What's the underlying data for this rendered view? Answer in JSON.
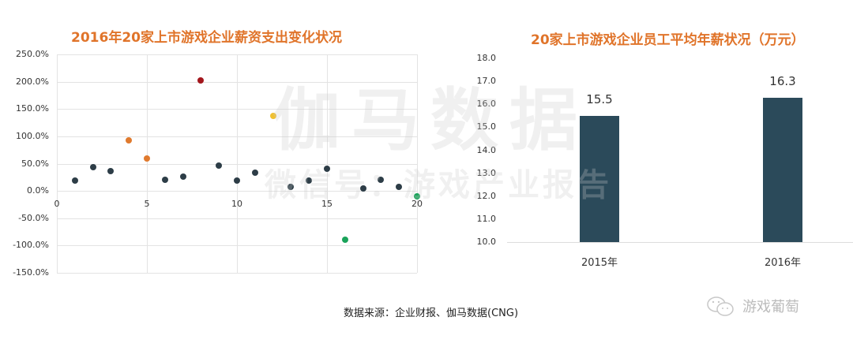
{
  "left_chart": {
    "title": "2016年20家上市游戏企业薪资支出变化状况",
    "y_ticks": [
      "250.0%",
      "200.0%",
      "150.0%",
      "100.0%",
      "50.0%",
      "0.0%",
      "-50.0%",
      "-100.0%",
      "-150.0%"
    ],
    "x_ticks": [
      "0",
      "5",
      "10",
      "15",
      "20"
    ]
  },
  "right_chart": {
    "title": "20家上市游戏企业员工平均年薪状况（万元）",
    "y_ticks": [
      "18.0",
      "17.0",
      "16.0",
      "15.0",
      "14.0",
      "13.0",
      "12.0",
      "11.0",
      "10.0"
    ],
    "categories": [
      "2015年",
      "2016年"
    ],
    "bar_labels": [
      "15.5",
      "16.3"
    ],
    "bar_color": "#2b4a5a"
  },
  "watermark": {
    "main": "伽马数据",
    "sub": "微信号：游戏产业报告"
  },
  "footer": {
    "source": "数据来源：企业财报、伽马数据(CNG)",
    "brand": "游戏葡萄"
  },
  "chart_data": [
    {
      "type": "scatter",
      "title": "2016年20家上市游戏企业薪资支出变化状况",
      "xlabel": "",
      "ylabel": "",
      "xlim": [
        0,
        20
      ],
      "ylim": [
        -150,
        250
      ],
      "y_unit": "%",
      "grid": true,
      "x": [
        1,
        2,
        3,
        4,
        5,
        6,
        7,
        8,
        9,
        10,
        11,
        12,
        13,
        14,
        15,
        16,
        17,
        18,
        19,
        20
      ],
      "y": [
        19,
        44,
        36,
        93,
        60,
        20,
        26,
        203,
        47,
        19,
        34,
        138,
        7,
        19,
        40,
        -89,
        4,
        20,
        8,
        -10
      ],
      "colors": [
        "#2d3d47",
        "#2d3d47",
        "#2d3d47",
        "#e07a2e",
        "#e07a2e",
        "#2d3d47",
        "#2d3d47",
        "#a3161c",
        "#2d3d47",
        "#2d3d47",
        "#2d3d47",
        "#f0c030",
        "#2d3d47",
        "#2d3d47",
        "#2d3d47",
        "#1aa35a",
        "#2d3d47",
        "#2d3d47",
        "#2d3d47",
        "#1aa35a"
      ]
    },
    {
      "type": "bar",
      "title": "20家上市游戏企业员工平均年薪状况（万元）",
      "categories": [
        "2015年",
        "2016年"
      ],
      "values": [
        15.5,
        16.3
      ],
      "xlabel": "",
      "ylabel": "",
      "ylim": [
        10,
        18
      ],
      "grid": false,
      "data_labels": true
    }
  ]
}
